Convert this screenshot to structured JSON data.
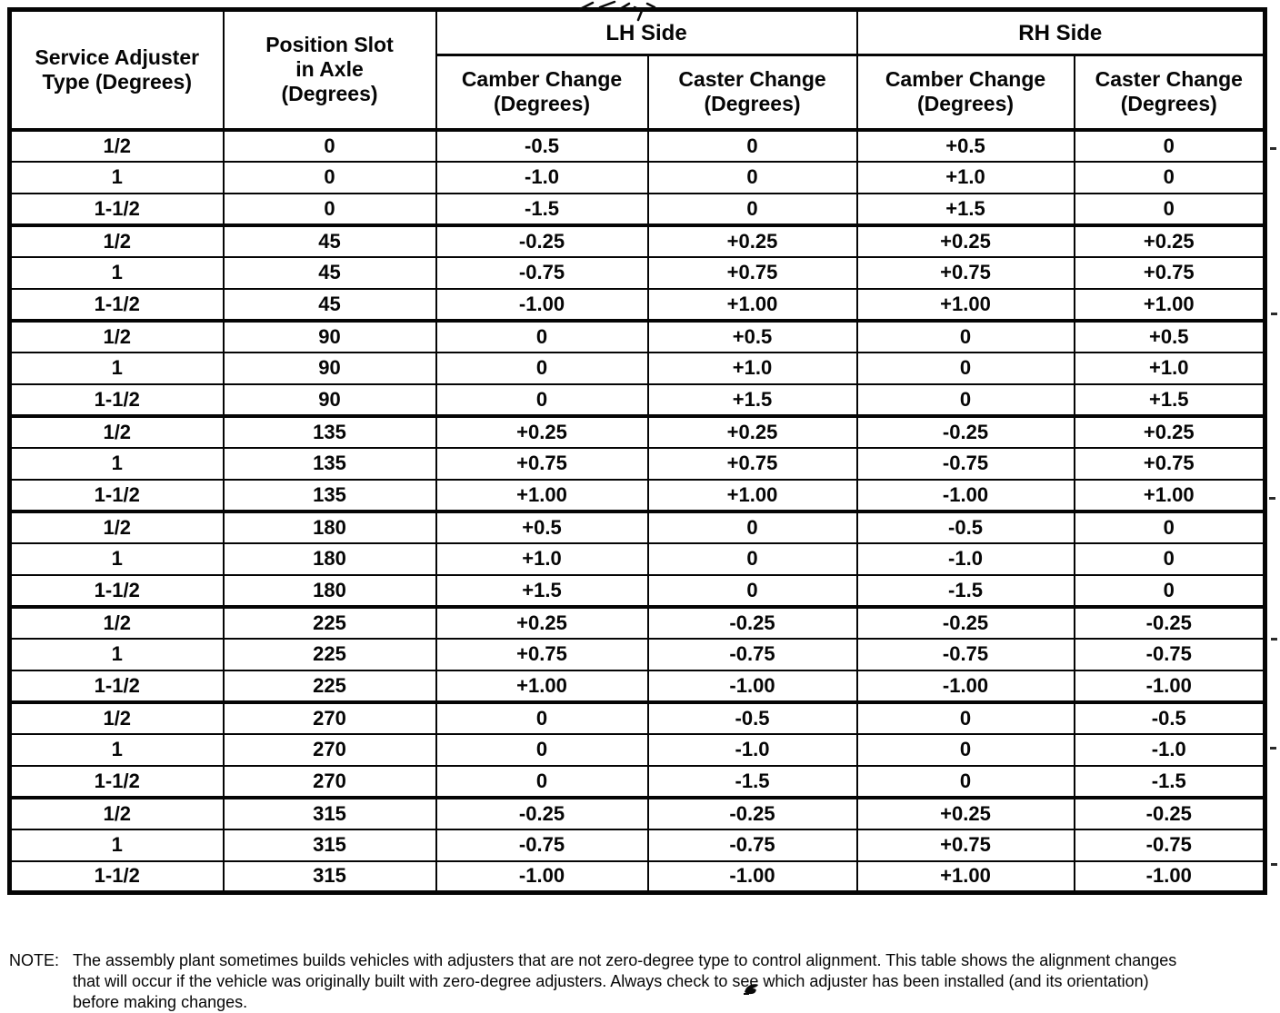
{
  "colors": {
    "ink": "#050505",
    "paper": "#ffffff"
  },
  "table": {
    "group_size": 3,
    "columns": [
      "Service Adjuster\nType (Degrees)",
      "Position Slot\nin Axle\n(Degrees)"
    ],
    "group_headers": [
      "LH Side",
      "RH Side"
    ],
    "sub_headers": [
      "Camber Change\n(Degrees)",
      "Caster Change\n(Degrees)",
      "Camber Change\n(Degrees)",
      "Caster Change\n(Degrees)"
    ],
    "rows": [
      [
        "1/2",
        "0",
        "-0.5",
        "0",
        "+0.5",
        "0"
      ],
      [
        "1",
        "0",
        "-1.0",
        "0",
        "+1.0",
        "0"
      ],
      [
        "1-1/2",
        "0",
        "-1.5",
        "0",
        "+1.5",
        "0"
      ],
      [
        "1/2",
        "45",
        "-0.25",
        "+0.25",
        "+0.25",
        "+0.25"
      ],
      [
        "1",
        "45",
        "-0.75",
        "+0.75",
        "+0.75",
        "+0.75"
      ],
      [
        "1-1/2",
        "45",
        "-1.00",
        "+1.00",
        "+1.00",
        "+1.00"
      ],
      [
        "1/2",
        "90",
        "0",
        "+0.5",
        "0",
        "+0.5"
      ],
      [
        "1",
        "90",
        "0",
        "+1.0",
        "0",
        "+1.0"
      ],
      [
        "1-1/2",
        "90",
        "0",
        "+1.5",
        "0",
        "+1.5"
      ],
      [
        "1/2",
        "135",
        "+0.25",
        "+0.25",
        "-0.25",
        "+0.25"
      ],
      [
        "1",
        "135",
        "+0.75",
        "+0.75",
        "-0.75",
        "+0.75"
      ],
      [
        "1-1/2",
        "135",
        "+1.00",
        "+1.00",
        "-1.00",
        "+1.00"
      ],
      [
        "1/2",
        "180",
        "+0.5",
        "0",
        "-0.5",
        "0"
      ],
      [
        "1",
        "180",
        "+1.0",
        "0",
        "-1.0",
        "0"
      ],
      [
        "1-1/2",
        "180",
        "+1.5",
        "0",
        "-1.5",
        "0"
      ],
      [
        "1/2",
        "225",
        "+0.25",
        "-0.25",
        "-0.25",
        "-0.25"
      ],
      [
        "1",
        "225",
        "+0.75",
        "-0.75",
        "-0.75",
        "-0.75"
      ],
      [
        "1-1/2",
        "225",
        "+1.00",
        "-1.00",
        "-1.00",
        "-1.00"
      ],
      [
        "1/2",
        "270",
        "0",
        "-0.5",
        "0",
        "-0.5"
      ],
      [
        "1",
        "270",
        "0",
        "-1.0",
        "0",
        "-1.0"
      ],
      [
        "1-1/2",
        "270",
        "0",
        "-1.5",
        "0",
        "-1.5"
      ],
      [
        "1/2",
        "315",
        "-0.25",
        "-0.25",
        "+0.25",
        "-0.25"
      ],
      [
        "1",
        "315",
        "-0.75",
        "-0.75",
        "+0.75",
        "-0.75"
      ],
      [
        "1-1/2",
        "315",
        "-1.00",
        "-1.00",
        "+1.00",
        "-1.00"
      ]
    ]
  },
  "note": {
    "label": "NOTE:",
    "lines": [
      "The assembly plant sometimes builds vehicles with adjusters that are not zero-degree type to control alignment. This table shows the alignment changes",
      "that will occur if the vehicle was originally built with zero-degree adjusters. Always check to see which adjuster has been installed (and its orientation)",
      "before making changes."
    ]
  }
}
